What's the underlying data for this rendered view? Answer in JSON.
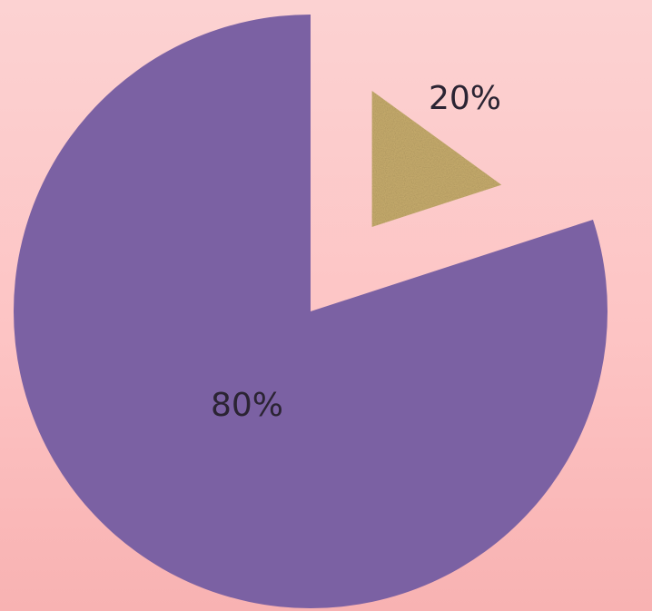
{
  "chart_data": {
    "type": "pie",
    "title": "",
    "categories": [
      "",
      ""
    ],
    "values": [
      80,
      20
    ],
    "labels": [
      "80%",
      "20%"
    ],
    "colors": [
      "#7b61a3",
      "#c9ae6e"
    ],
    "exploded": [
      false,
      true
    ],
    "legend": "none"
  }
}
